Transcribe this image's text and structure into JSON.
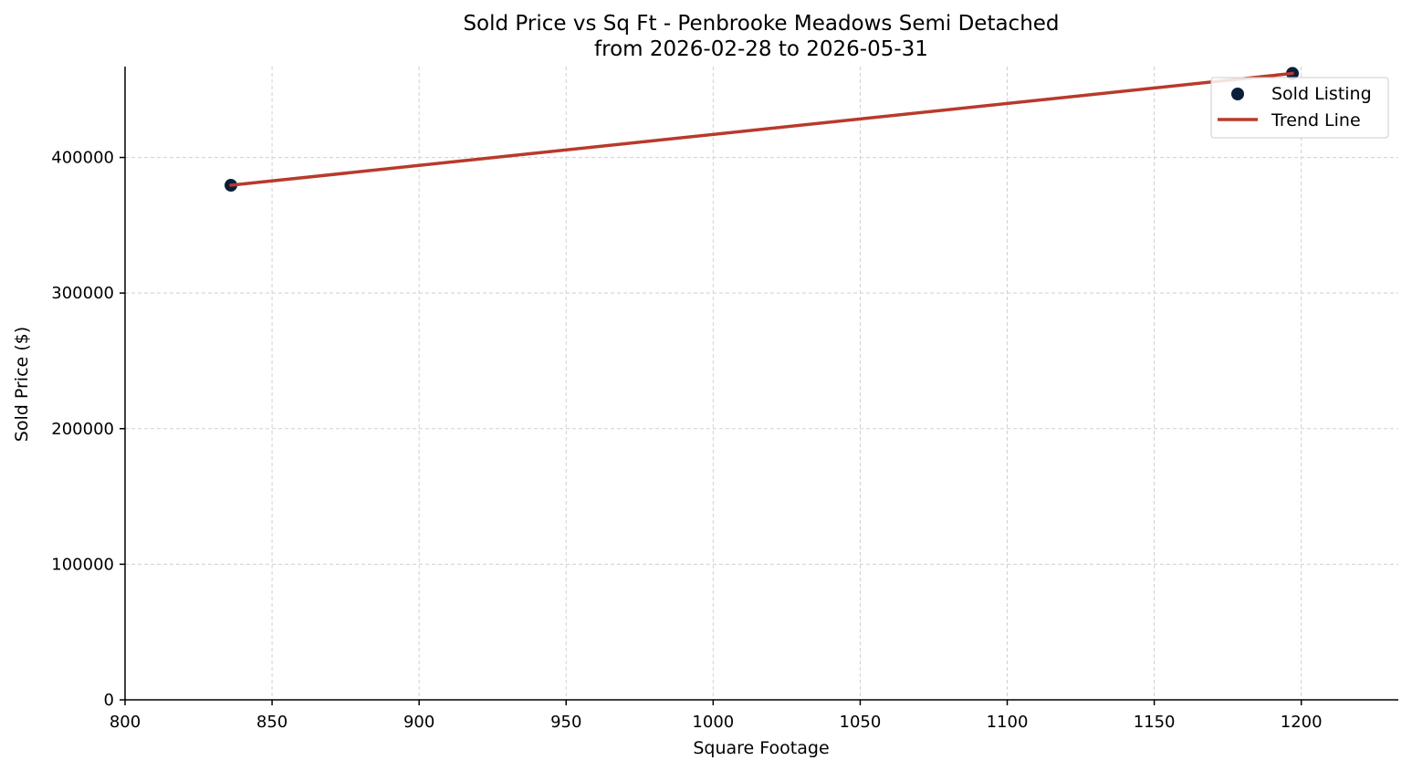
{
  "chart_data": {
    "type": "scatter",
    "title_line1": "Sold Price vs Sq Ft - Penbrooke Meadows Semi Detached",
    "title_line2": "from 2026-02-28 to 2026-05-31",
    "xlabel": "Square Footage",
    "ylabel": "Sold Price ($)",
    "xlim": [
      800,
      1233
    ],
    "ylim": [
      0,
      467000
    ],
    "xticks": [
      800,
      850,
      900,
      950,
      1000,
      1050,
      1100,
      1150,
      1200
    ],
    "yticks": [
      0,
      100000,
      200000,
      300000,
      400000
    ],
    "grid": true,
    "legend_position": "top-right",
    "series": [
      {
        "name": "Sold Listing",
        "kind": "scatter",
        "color": "#0b1f3a",
        "points": [
          {
            "x": 836,
            "y": 379500
          },
          {
            "x": 1197,
            "y": 462000
          }
        ]
      },
      {
        "name": "Trend Line",
        "kind": "line",
        "color": "#b83a2b",
        "points": [
          {
            "x": 836,
            "y": 379500
          },
          {
            "x": 1197,
            "y": 462000
          }
        ]
      }
    ]
  }
}
